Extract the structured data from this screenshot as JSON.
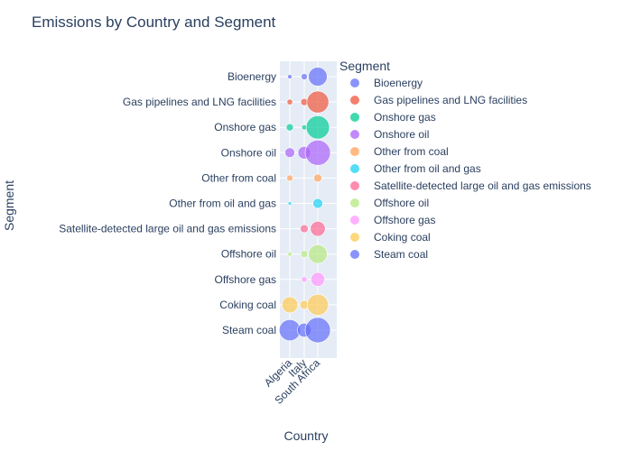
{
  "chart_data": {
    "type": "scatter",
    "title": "Emissions by Country and Segment",
    "xlabel": "Country",
    "ylabel": "Segment",
    "x_categories": [
      "Algeria",
      "Italy",
      "South Africa"
    ],
    "y_categories": [
      "Bioenergy",
      "Gas pipelines and LNG facilities",
      "Onshore gas",
      "Onshore oil",
      "Other from coal",
      "Other from oil and gas",
      "Satellite-detected large oil and gas emissions",
      "Offshore oil",
      "Offshore gas",
      "Coking coal",
      "Steam coal"
    ],
    "legend_title": "Segment",
    "legend_position": "right",
    "grid": true,
    "series": [
      {
        "name": "Bioenergy",
        "color": "#636efa",
        "points": [
          {
            "x": "Algeria",
            "y": "Bioenergy",
            "size": 0.03
          },
          {
            "x": "Italy",
            "y": "Bioenergy",
            "size": 0.06
          },
          {
            "x": "South Africa",
            "y": "Bioenergy",
            "size": 0.55
          }
        ]
      },
      {
        "name": "Gas pipelines and LNG facilities",
        "color": "#EF553B",
        "points": [
          {
            "x": "Algeria",
            "y": "Gas pipelines and LNG facilities",
            "size": 0.05
          },
          {
            "x": "Italy",
            "y": "Gas pipelines and LNG facilities",
            "size": 0.08
          },
          {
            "x": "South Africa",
            "y": "Gas pipelines and LNG facilities",
            "size": 0.75
          }
        ]
      },
      {
        "name": "Onshore gas",
        "color": "#00cc96",
        "points": [
          {
            "x": "Algeria",
            "y": "Onshore gas",
            "size": 0.08
          },
          {
            "x": "Italy",
            "y": "Onshore gas",
            "size": 0.04
          },
          {
            "x": "South Africa",
            "y": "Onshore gas",
            "size": 0.85
          }
        ]
      },
      {
        "name": "Onshore oil",
        "color": "#ab63fa",
        "points": [
          {
            "x": "Algeria",
            "y": "Onshore oil",
            "size": 0.15
          },
          {
            "x": "Italy",
            "y": "Onshore oil",
            "size": 0.25
          },
          {
            "x": "South Africa",
            "y": "Onshore oil",
            "size": 1.0
          }
        ]
      },
      {
        "name": "Other from coal",
        "color": "#FFA15A",
        "points": [
          {
            "x": "Algeria",
            "y": "Other from coal",
            "size": 0.06
          },
          {
            "x": "South Africa",
            "y": "Other from coal",
            "size": 0.1
          }
        ]
      },
      {
        "name": "Other from oil and gas",
        "color": "#19d3f3",
        "points": [
          {
            "x": "Algeria",
            "y": "Other from oil and gas",
            "size": 0.02
          },
          {
            "x": "South Africa",
            "y": "Other from oil and gas",
            "size": 0.15
          }
        ]
      },
      {
        "name": "Satellite-detected large oil and gas emissions",
        "color": "#FF6692",
        "points": [
          {
            "x": "Italy",
            "y": "Satellite-detected large oil and gas emissions",
            "size": 0.1
          },
          {
            "x": "South Africa",
            "y": "Satellite-detected large oil and gas emissions",
            "size": 0.35
          }
        ]
      },
      {
        "name": "Offshore oil",
        "color": "#B6E880",
        "points": [
          {
            "x": "Algeria",
            "y": "Offshore oil",
            "size": 0.03
          },
          {
            "x": "Italy",
            "y": "Offshore oil",
            "size": 0.08
          },
          {
            "x": "South Africa",
            "y": "Offshore oil",
            "size": 0.55
          }
        ]
      },
      {
        "name": "Offshore gas",
        "color": "#FF97FF",
        "points": [
          {
            "x": "Italy",
            "y": "Offshore gas",
            "size": 0.05
          },
          {
            "x": "South Africa",
            "y": "Offshore gas",
            "size": 0.3
          }
        ]
      },
      {
        "name": "Coking coal",
        "color": "#FECB52",
        "points": [
          {
            "x": "Algeria",
            "y": "Coking coal",
            "size": 0.4
          },
          {
            "x": "Italy",
            "y": "Coking coal",
            "size": 0.12
          },
          {
            "x": "South Africa",
            "y": "Coking coal",
            "size": 0.7
          }
        ]
      },
      {
        "name": "Steam coal",
        "color": "#636efa",
        "points": [
          {
            "x": "Algeria",
            "y": "Steam coal",
            "size": 0.7
          },
          {
            "x": "Italy",
            "y": "Steam coal",
            "size": 0.3
          },
          {
            "x": "South Africa",
            "y": "Steam coal",
            "size": 1.0
          }
        ]
      }
    ]
  }
}
